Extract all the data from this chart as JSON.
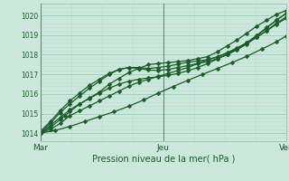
{
  "title": "Pression niveau de la mer( hPa )",
  "bg_color": "#cce8dc",
  "plot_bg_color": "#cce8dc",
  "grid_major_color": "#99ccbb",
  "grid_minor_color": "#b8ddd0",
  "line_color": "#1a5c28",
  "marker_color": "#1a5c28",
  "ylim": [
    1013.6,
    1020.6
  ],
  "yticks": [
    1014,
    1015,
    1016,
    1017,
    1018,
    1019,
    1020
  ],
  "xtick_labels": [
    "Mar",
    "Jeu",
    "Ven"
  ],
  "xtick_positions": [
    0.0,
    0.5,
    1.0
  ],
  "vline_positions": [
    0.0,
    0.5,
    1.0
  ],
  "series": [
    {
      "x": [
        0.0,
        0.04,
        0.08,
        0.1,
        0.12,
        0.16,
        0.2,
        0.24,
        0.28,
        0.32,
        0.36,
        0.4,
        0.44,
        0.48,
        0.52,
        0.56,
        0.6,
        0.64,
        0.68,
        0.72,
        0.76,
        0.8,
        0.84,
        0.88,
        0.92,
        0.96,
        1.0
      ],
      "y": [
        1014.0,
        1014.3,
        1014.7,
        1014.9,
        1015.1,
        1015.5,
        1015.8,
        1016.1,
        1016.5,
        1016.8,
        1017.1,
        1017.3,
        1017.5,
        1017.55,
        1017.6,
        1017.65,
        1017.7,
        1017.8,
        1017.9,
        1018.15,
        1018.45,
        1018.75,
        1019.1,
        1019.45,
        1019.75,
        1020.05,
        1020.25
      ],
      "marker": "D",
      "markersize": 2.5,
      "lw": 0.9
    },
    {
      "x": [
        0.0,
        0.04,
        0.08,
        0.12,
        0.16,
        0.2,
        0.24,
        0.28,
        0.32,
        0.36,
        0.4,
        0.44,
        0.48,
        0.52,
        0.56,
        0.6,
        0.64,
        0.68,
        0.72,
        0.76,
        0.8,
        0.84,
        0.88,
        0.92,
        0.96,
        1.0
      ],
      "y": [
        1014.0,
        1014.2,
        1014.5,
        1014.9,
        1015.15,
        1015.4,
        1015.65,
        1015.9,
        1016.15,
        1016.4,
        1016.6,
        1016.75,
        1016.9,
        1017.05,
        1017.2,
        1017.35,
        1017.55,
        1017.75,
        1017.9,
        1018.1,
        1018.35,
        1018.6,
        1018.9,
        1019.2,
        1019.55,
        1019.85
      ],
      "marker": "D",
      "markersize": 2.5,
      "lw": 0.9
    },
    {
      "x": [
        0.0,
        0.04,
        0.08,
        0.12,
        0.16,
        0.2,
        0.24,
        0.28,
        0.32,
        0.36,
        0.4,
        0.44,
        0.48,
        0.52,
        0.56,
        0.6,
        0.64,
        0.68,
        0.72,
        0.76,
        0.8,
        0.84,
        0.88,
        0.92,
        0.96,
        1.0
      ],
      "y": [
        1014.05,
        1014.5,
        1015.05,
        1015.5,
        1015.9,
        1016.3,
        1016.65,
        1017.0,
        1017.25,
        1017.35,
        1017.35,
        1017.3,
        1017.35,
        1017.42,
        1017.52,
        1017.62,
        1017.68,
        1017.75,
        1017.88,
        1018.08,
        1018.32,
        1018.62,
        1018.98,
        1019.38,
        1019.75,
        1020.1
      ],
      "marker": "D",
      "markersize": 2.5,
      "lw": 0.9
    },
    {
      "x": [
        0.0,
        0.04,
        0.08,
        0.12,
        0.16,
        0.2,
        0.24,
        0.28,
        0.32,
        0.36,
        0.4,
        0.44,
        0.48,
        0.52,
        0.56,
        0.6,
        0.64,
        0.68,
        0.72,
        0.76,
        0.8,
        0.84,
        0.88,
        0.92,
        0.96,
        1.0
      ],
      "y": [
        1014.1,
        1014.6,
        1015.15,
        1015.65,
        1016.05,
        1016.45,
        1016.75,
        1017.05,
        1017.25,
        1017.35,
        1017.3,
        1017.22,
        1017.2,
        1017.25,
        1017.35,
        1017.45,
        1017.55,
        1017.65,
        1017.8,
        1018.0,
        1018.25,
        1018.55,
        1018.95,
        1019.35,
        1019.75,
        1020.1
      ],
      "marker": "D",
      "markersize": 2.5,
      "lw": 0.9
    },
    {
      "x": [
        0.0,
        0.04,
        0.08,
        0.12,
        0.16,
        0.2,
        0.24,
        0.28,
        0.32,
        0.36,
        0.4,
        0.44,
        0.48,
        0.52,
        0.56,
        0.6,
        0.64,
        0.68,
        0.72,
        0.76,
        0.8,
        0.84,
        0.88,
        0.92,
        0.96,
        1.0
      ],
      "y": [
        1014.0,
        1014.4,
        1014.8,
        1015.2,
        1015.5,
        1015.78,
        1016.05,
        1016.3,
        1016.5,
        1016.65,
        1016.75,
        1016.82,
        1016.88,
        1016.95,
        1017.05,
        1017.18,
        1017.35,
        1017.55,
        1017.78,
        1018.02,
        1018.28,
        1018.56,
        1018.88,
        1019.22,
        1019.6,
        1019.92
      ],
      "marker": "D",
      "markersize": 2.5,
      "lw": 0.9
    },
    {
      "x": [
        0.0,
        0.06,
        0.12,
        0.18,
        0.24,
        0.3,
        0.36,
        0.42,
        0.48,
        0.54,
        0.6,
        0.66,
        0.72,
        0.78,
        0.84,
        0.9,
        0.96,
        1.0
      ],
      "y": [
        1014.0,
        1014.15,
        1014.35,
        1014.6,
        1014.85,
        1015.1,
        1015.38,
        1015.7,
        1016.05,
        1016.38,
        1016.7,
        1017.0,
        1017.3,
        1017.6,
        1017.92,
        1018.28,
        1018.65,
        1018.95
      ],
      "marker": "D",
      "markersize": 2.5,
      "lw": 0.9
    }
  ]
}
